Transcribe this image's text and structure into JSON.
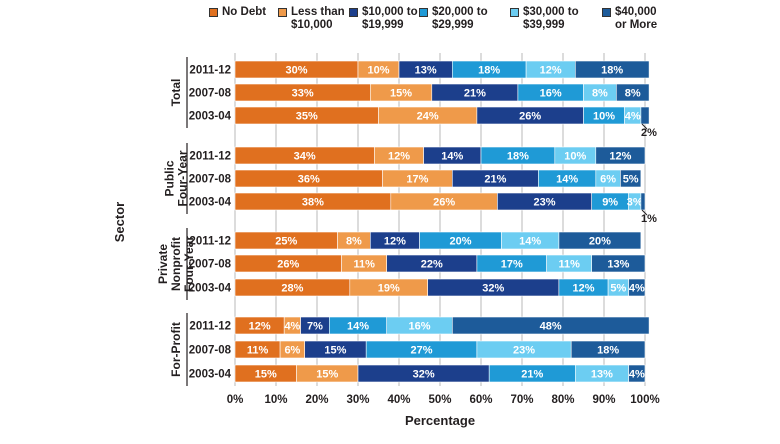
{
  "chart_data": {
    "type": "bar",
    "stacked": true,
    "orientation": "horizontal",
    "xlabel": "Percentage",
    "ylabel": "Sector",
    "xlim": [
      0,
      100
    ],
    "xticks": [
      "0%",
      "10%",
      "20%",
      "30%",
      "40%",
      "50%",
      "60%",
      "70%",
      "80%",
      "90%",
      "100%"
    ],
    "grid": true,
    "legend_position": "top",
    "series": [
      {
        "name": "No Debt",
        "label_lines": [
          "No Debt"
        ],
        "color": "#e0701f"
      },
      {
        "name": "Less than $10,000",
        "label_lines": [
          "Less than",
          "$10,000"
        ],
        "color": "#ef9a4a"
      },
      {
        "name": "$10,000 to $19,999",
        "label_lines": [
          "$10,000 to",
          "$19,999"
        ],
        "color": "#1c3f8c"
      },
      {
        "name": "$20,000 to $29,999",
        "label_lines": [
          "$20,000 to",
          "$29,999"
        ],
        "color": "#1f9ad6"
      },
      {
        "name": "$30,000 to $39,999",
        "label_lines": [
          "$30,000 to",
          "$39,999"
        ],
        "color": "#6ccdf2"
      },
      {
        "name": "$40,000 or More",
        "label_lines": [
          "$40,000",
          "or More"
        ],
        "color": "#1d5b9a"
      }
    ],
    "groups": [
      {
        "name": "Total",
        "label_lines": [
          "Total"
        ],
        "rows": [
          {
            "year": "2011-12",
            "values": [
              30,
              10,
              13,
              18,
              12,
              18
            ],
            "labels": [
              "30%",
              "10%",
              "13%",
              "18%",
              "12%",
              "18%"
            ],
            "outside_label": ""
          },
          {
            "year": "2007-08",
            "values": [
              33,
              15,
              21,
              16,
              8,
              8
            ],
            "labels": [
              "33%",
              "15%",
              "21%",
              "16%",
              "8%",
              "8%"
            ],
            "outside_label": ""
          },
          {
            "year": "2003-04",
            "values": [
              35,
              24,
              26,
              10,
              4,
              2
            ],
            "labels": [
              "35%",
              "24%",
              "26%",
              "10%",
              "4%",
              ""
            ],
            "outside_label": "2%"
          }
        ]
      },
      {
        "name": "Public Four-Year",
        "label_lines": [
          "Public",
          "Four-Year"
        ],
        "rows": [
          {
            "year": "2011-12",
            "values": [
              34,
              12,
              14,
              18,
              10,
              12
            ],
            "labels": [
              "34%",
              "12%",
              "14%",
              "18%",
              "10%",
              "12%"
            ],
            "outside_label": ""
          },
          {
            "year": "2007-08",
            "values": [
              36,
              17,
              21,
              14,
              6,
              5
            ],
            "labels": [
              "36%",
              "17%",
              "21%",
              "14%",
              "6%",
              "5%"
            ],
            "outside_label": ""
          },
          {
            "year": "2003-04",
            "values": [
              38,
              26,
              23,
              9,
              3,
              1
            ],
            "labels": [
              "38%",
              "26%",
              "23%",
              "9%",
              "3%",
              ""
            ],
            "outside_label": "1%"
          }
        ]
      },
      {
        "name": "Private Nonprofit Four-Year",
        "label_lines": [
          "Private",
          "Nonprofit",
          "Four-Year"
        ],
        "rows": [
          {
            "year": "2011-12",
            "values": [
              25,
              8,
              12,
              20,
              14,
              20
            ],
            "labels": [
              "25%",
              "8%",
              "12%",
              "20%",
              "14%",
              "20%"
            ],
            "outside_label": ""
          },
          {
            "year": "2007-08",
            "values": [
              26,
              11,
              22,
              17,
              11,
              13
            ],
            "labels": [
              "26%",
              "11%",
              "22%",
              "17%",
              "11%",
              "13%"
            ],
            "outside_label": ""
          },
          {
            "year": "2003-04",
            "values": [
              28,
              19,
              32,
              12,
              5,
              4
            ],
            "labels": [
              "28%",
              "19%",
              "32%",
              "12%",
              "5%",
              "4%"
            ],
            "outside_label": ""
          }
        ]
      },
      {
        "name": "For-Profit",
        "label_lines": [
          "For-Profit"
        ],
        "rows": [
          {
            "year": "2011-12",
            "values": [
              12,
              4,
              7,
              14,
              16,
              48
            ],
            "labels": [
              "12%",
              "4%",
              "7%",
              "14%",
              "16%",
              "48%"
            ],
            "outside_label": ""
          },
          {
            "year": "2007-08",
            "values": [
              11,
              6,
              15,
              27,
              23,
              18
            ],
            "labels": [
              "11%",
              "6%",
              "15%",
              "27%",
              "23%",
              "18%"
            ],
            "outside_label": ""
          },
          {
            "year": "2003-04",
            "values": [
              15,
              15,
              32,
              21,
              13,
              4
            ],
            "labels": [
              "15%",
              "15%",
              "32%",
              "21%",
              "13%",
              "4%"
            ],
            "outside_label": ""
          }
        ]
      }
    ]
  }
}
